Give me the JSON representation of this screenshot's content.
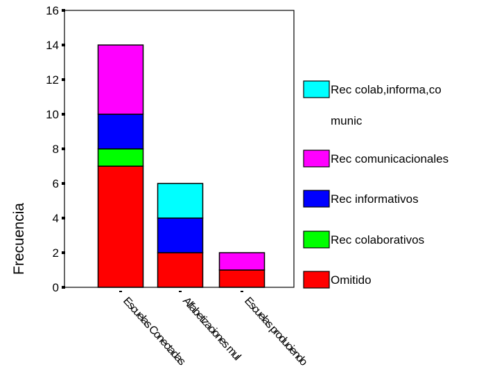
{
  "chart_data": {
    "type": "bar",
    "stacked": true,
    "categories": [
      "Escuelas Conectadas",
      "Alfabetizaciones mul",
      "Escuelas produciendo"
    ],
    "series": [
      {
        "name": "Omitido",
        "color": "#ff0000",
        "values": [
          7,
          2,
          1
        ]
      },
      {
        "name": "Rec colaborativos",
        "color": "#00ff00",
        "values": [
          1,
          0,
          0
        ]
      },
      {
        "name": "Rec informativos",
        "color": "#0000ff",
        "values": [
          2,
          2,
          0
        ]
      },
      {
        "name": "Rec comunicacionales",
        "color": "#ff00ff",
        "values": [
          4,
          0,
          1
        ]
      },
      {
        "name": "Rec colab,informa,co\nmunic",
        "color": "#00ffff",
        "values": [
          0,
          2,
          0
        ]
      }
    ],
    "legend_order": [
      "Rec colab,informa,co\nmunic",
      "Rec comunicacionales",
      "Rec informativos",
      "Rec colaborativos",
      "Omitido"
    ],
    "ylabel": "Frecuencia",
    "xlabel": "",
    "ylim": [
      0,
      16
    ],
    "yticks": [
      0,
      2,
      4,
      6,
      8,
      10,
      12,
      14,
      16
    ],
    "grid": false,
    "legend_position": "right"
  }
}
